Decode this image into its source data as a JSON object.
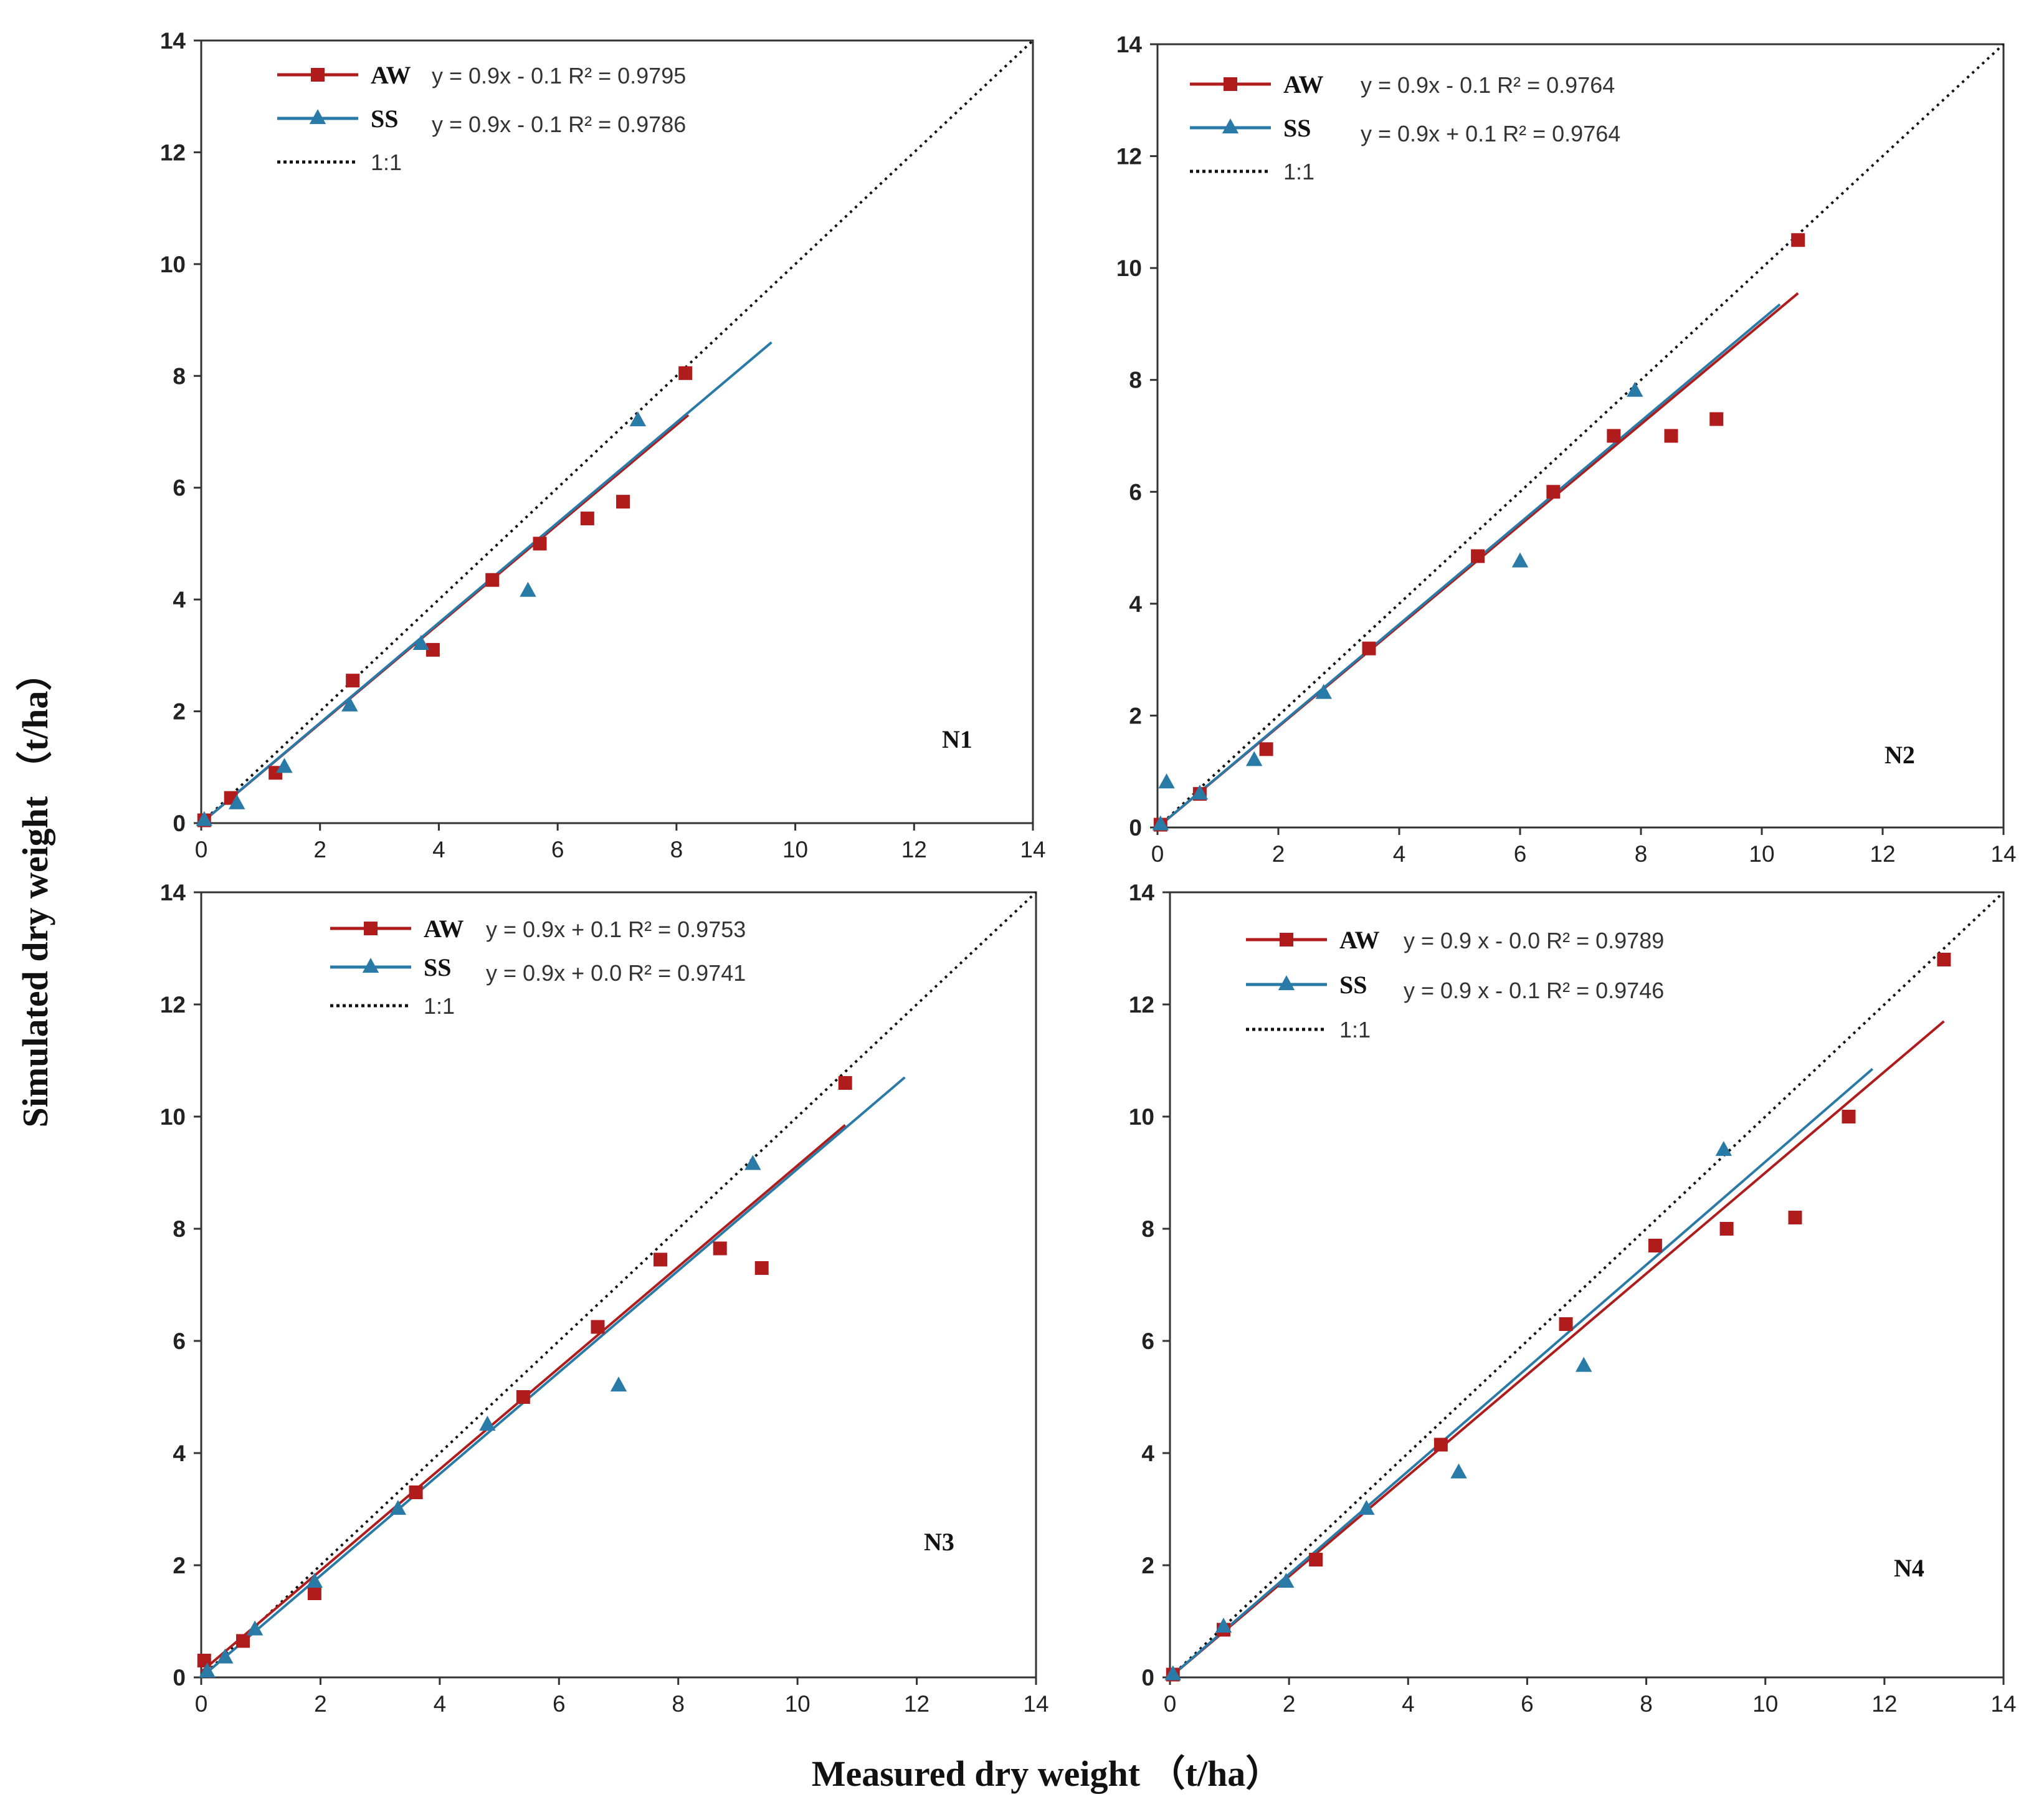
{
  "colors": {
    "aw": "#b01c1c",
    "ss": "#2a7aa8",
    "ref": "#111111",
    "axis": "#333333"
  },
  "figure": {
    "xlabel": "Measured dry weight  （t/ha）",
    "ylabel": "Simulated dry weight （t/ha）"
  },
  "legend_labels": {
    "aw": "AW",
    "ss": "SS",
    "ref": "1:1"
  },
  "chart_data": [
    {
      "type": "scatter",
      "panel": "N1",
      "xlim": [
        0,
        14
      ],
      "ylim": [
        0,
        14
      ],
      "ticks": [
        0,
        2,
        4,
        6,
        8,
        10,
        12,
        14
      ],
      "series": [
        {
          "name": "AW",
          "marker": "square",
          "equation": "y = 0.9x - 0.1 R² = 0.9795",
          "x": [
            0.05,
            0.5,
            1.25,
            2.55,
            3.9,
            4.9,
            5.7,
            6.5,
            7.1,
            8.15
          ],
          "y": [
            0.05,
            0.45,
            0.9,
            2.55,
            3.1,
            4.35,
            5.0,
            5.45,
            5.75,
            8.05
          ],
          "fit": [
            [
              0.0,
              0.0
            ],
            [
              8.2,
              7.3
            ]
          ]
        },
        {
          "name": "SS",
          "marker": "triangle",
          "equation": "y = 0.9x - 0.1 R² = 0.9786",
          "x": [
            0.05,
            0.6,
            1.4,
            2.5,
            3.7,
            5.5,
            7.35
          ],
          "y": [
            0.05,
            0.35,
            1.0,
            2.1,
            3.2,
            4.15,
            7.2
          ],
          "fit": [
            [
              0.0,
              0.0
            ],
            [
              9.6,
              8.6
            ]
          ]
        }
      ]
    },
    {
      "type": "scatter",
      "panel": "N2",
      "xlim": [
        0,
        14
      ],
      "ylim": [
        0,
        14
      ],
      "ticks": [
        0,
        2,
        4,
        6,
        8,
        10,
        12,
        14
      ],
      "series": [
        {
          "name": "AW",
          "marker": "square",
          "equation": "y = 0.9x - 0.1  R² = 0.9764",
          "x": [
            0.05,
            0.7,
            1.8,
            3.5,
            5.3,
            6.55,
            7.55,
            8.5,
            9.25,
            10.6
          ],
          "y": [
            0.05,
            0.6,
            1.4,
            3.2,
            4.85,
            6.0,
            7.0,
            7.0,
            7.3,
            10.5
          ],
          "fit": [
            [
              0.0,
              0.0
            ],
            [
              10.6,
              9.55
            ]
          ]
        },
        {
          "name": "SS",
          "marker": "triangle",
          "equation": "y = 0.9x + 0.1 R² = 0.9764",
          "x": [
            0.05,
            0.15,
            0.7,
            1.6,
            2.75,
            6.0,
            7.9
          ],
          "y": [
            0.05,
            0.8,
            0.6,
            1.2,
            2.4,
            4.75,
            7.8
          ],
          "fit": [
            [
              0.0,
              0.0
            ],
            [
              10.3,
              9.35
            ]
          ]
        }
      ]
    },
    {
      "type": "scatter",
      "panel": "N3",
      "xlim": [
        0,
        14
      ],
      "ylim": [
        0,
        14
      ],
      "ticks": [
        0,
        2,
        4,
        6,
        8,
        10,
        12,
        14
      ],
      "series": [
        {
          "name": "AW",
          "marker": "square",
          "equation": "y = 0.9x + 0.1  R² = 0.9753",
          "x": [
            0.05,
            0.7,
            1.9,
            3.6,
            5.4,
            6.65,
            7.7,
            8.7,
            9.4,
            10.8
          ],
          "y": [
            0.3,
            0.65,
            1.5,
            3.3,
            5.0,
            6.25,
            7.45,
            7.65,
            7.3,
            10.6
          ],
          "fit": [
            [
              0.0,
              0.1
            ],
            [
              10.8,
              9.85
            ]
          ]
        },
        {
          "name": "SS",
          "marker": "triangle",
          "equation": "y = 0.9x + 0.0  R² = 0.9741",
          "x": [
            0.1,
            0.4,
            0.9,
            1.9,
            3.3,
            4.8,
            7.0,
            9.25
          ],
          "y": [
            0.1,
            0.35,
            0.85,
            1.7,
            3.0,
            4.5,
            5.2,
            9.15
          ],
          "fit": [
            [
              0.0,
              0.0
            ],
            [
              11.8,
              10.7
            ]
          ]
        }
      ]
    },
    {
      "type": "scatter",
      "panel": "N4",
      "xlim": [
        0,
        14
      ],
      "ylim": [
        0,
        14
      ],
      "ticks": [
        0,
        2,
        4,
        6,
        8,
        10,
        12,
        14
      ],
      "series": [
        {
          "name": "AW",
          "marker": "square",
          "equation": "y = 0.9 x - 0.0  R² = 0.9789",
          "x": [
            0.05,
            0.9,
            2.45,
            4.55,
            6.65,
            8.15,
            9.35,
            10.5,
            11.4,
            13.0
          ],
          "y": [
            0.05,
            0.85,
            2.1,
            4.15,
            6.3,
            7.7,
            8.0,
            8.2,
            10.0,
            12.8
          ],
          "fit": [
            [
              0.0,
              0.0
            ],
            [
              13.0,
              11.7
            ]
          ]
        },
        {
          "name": "SS",
          "marker": "triangle",
          "equation": "y = 0.9 x - 0.1  R² = 0.9746",
          "x": [
            0.05,
            0.9,
            1.95,
            3.3,
            4.85,
            6.95,
            9.3
          ],
          "y": [
            0.05,
            0.9,
            1.7,
            3.0,
            3.65,
            5.55,
            9.4
          ],
          "fit": [
            [
              0.0,
              0.0
            ],
            [
              11.8,
              10.85
            ]
          ]
        }
      ]
    }
  ]
}
